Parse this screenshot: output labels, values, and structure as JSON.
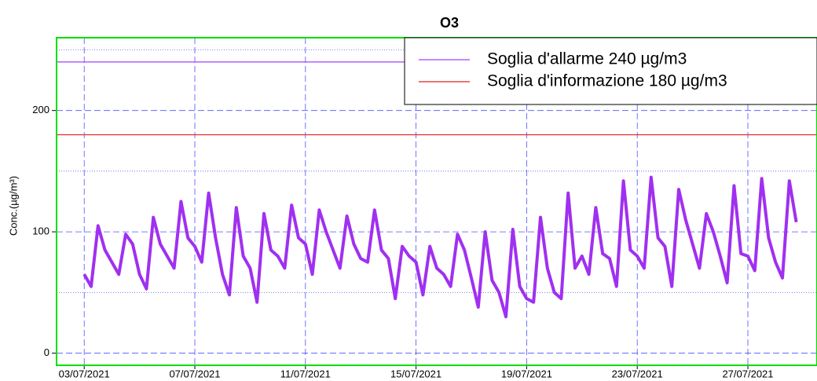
{
  "chart_data": {
    "type": "line",
    "title": "O3",
    "y_label": "Conc.(µg/m³)",
    "x": [
      "03/07/2021 00:00",
      "03/07/2021 06:00",
      "03/07/2021 12:00",
      "03/07/2021 18:00",
      "04/07/2021 00:00",
      "04/07/2021 06:00",
      "04/07/2021 12:00",
      "04/07/2021 18:00",
      "05/07/2021 00:00",
      "05/07/2021 06:00",
      "05/07/2021 12:00",
      "05/07/2021 18:00",
      "06/07/2021 00:00",
      "06/07/2021 06:00",
      "06/07/2021 12:00",
      "06/07/2021 18:00",
      "07/07/2021 00:00",
      "07/07/2021 06:00",
      "07/07/2021 12:00",
      "07/07/2021 18:00",
      "08/07/2021 00:00",
      "08/07/2021 06:00",
      "08/07/2021 12:00",
      "08/07/2021 18:00",
      "09/07/2021 00:00",
      "09/07/2021 06:00",
      "09/07/2021 12:00",
      "09/07/2021 18:00",
      "10/07/2021 00:00",
      "10/07/2021 06:00",
      "10/07/2021 12:00",
      "10/07/2021 18:00",
      "11/07/2021 00:00",
      "11/07/2021 06:00",
      "11/07/2021 12:00",
      "11/07/2021 18:00",
      "12/07/2021 00:00",
      "12/07/2021 06:00",
      "12/07/2021 12:00",
      "12/07/2021 18:00",
      "13/07/2021 00:00",
      "13/07/2021 06:00",
      "13/07/2021 12:00",
      "13/07/2021 18:00",
      "14/07/2021 00:00",
      "14/07/2021 06:00",
      "14/07/2021 12:00",
      "14/07/2021 18:00",
      "15/07/2021 00:00",
      "15/07/2021 06:00",
      "15/07/2021 12:00",
      "15/07/2021 18:00",
      "16/07/2021 00:00",
      "16/07/2021 06:00",
      "16/07/2021 12:00",
      "16/07/2021 18:00",
      "17/07/2021 00:00",
      "17/07/2021 06:00",
      "17/07/2021 12:00",
      "17/07/2021 18:00",
      "18/07/2021 00:00",
      "18/07/2021 06:00",
      "18/07/2021 12:00",
      "18/07/2021 18:00",
      "19/07/2021 00:00",
      "19/07/2021 06:00",
      "19/07/2021 12:00",
      "19/07/2021 18:00",
      "20/07/2021 00:00",
      "20/07/2021 06:00",
      "20/07/2021 12:00",
      "20/07/2021 18:00",
      "21/07/2021 00:00",
      "21/07/2021 06:00",
      "21/07/2021 12:00",
      "21/07/2021 18:00",
      "22/07/2021 00:00",
      "22/07/2021 06:00",
      "22/07/2021 12:00",
      "22/07/2021 18:00",
      "23/07/2021 00:00",
      "23/07/2021 06:00",
      "23/07/2021 12:00",
      "23/07/2021 18:00",
      "24/07/2021 00:00",
      "24/07/2021 06:00",
      "24/07/2021 12:00",
      "24/07/2021 18:00",
      "25/07/2021 00:00",
      "25/07/2021 06:00",
      "25/07/2021 12:00",
      "25/07/2021 18:00",
      "26/07/2021 00:00",
      "26/07/2021 06:00",
      "26/07/2021 12:00",
      "26/07/2021 18:00",
      "27/07/2021 00:00",
      "27/07/2021 06:00",
      "27/07/2021 12:00",
      "27/07/2021 18:00",
      "28/07/2021 00:00",
      "28/07/2021 06:00",
      "28/07/2021 12:00",
      "28/07/2021 18:00"
    ],
    "series": [
      {
        "color": "#a030f0",
        "values": [
          65,
          55,
          105,
          85,
          75,
          65,
          98,
          90,
          65,
          53,
          112,
          90,
          80,
          70,
          125,
          95,
          88,
          75,
          132,
          95,
          65,
          48,
          120,
          80,
          70,
          42,
          115,
          85,
          80,
          70,
          122,
          95,
          90,
          65,
          118,
          100,
          85,
          70,
          113,
          90,
          78,
          75,
          118,
          85,
          78,
          45,
          88,
          80,
          75,
          48,
          88,
          70,
          65,
          55,
          98,
          85,
          62,
          38,
          100,
          60,
          50,
          30,
          102,
          55,
          45,
          42,
          112,
          70,
          50,
          45,
          132,
          70,
          80,
          65,
          120,
          82,
          78,
          55,
          142,
          85,
          80,
          70,
          145,
          95,
          88,
          55,
          135,
          110,
          90,
          70,
          115,
          100,
          80,
          58,
          138,
          82,
          80,
          68,
          144,
          95,
          75,
          62,
          142,
          108
        ]
      }
    ],
    "thresholds": [
      {
        "name": "Soglia d'allarme 240 µg/m3",
        "value": 240,
        "color": "#a040ff"
      },
      {
        "name": "Soglia d'informazione 180 µg/m3",
        "value": 180,
        "color": "#e02020"
      }
    ],
    "xlim": [
      "02/07/2021 00:00",
      "29/07/2021 12:00"
    ],
    "xticks": [
      "03/07/2021",
      "07/07/2021",
      "11/07/2021",
      "15/07/2021",
      "19/07/2021",
      "23/07/2021",
      "27/07/2021"
    ],
    "ylim": [
      -10,
      260
    ],
    "yticks": [
      0,
      100,
      200
    ],
    "yminor": [
      50,
      150,
      250
    ],
    "grid": true,
    "legend": "top-right"
  }
}
